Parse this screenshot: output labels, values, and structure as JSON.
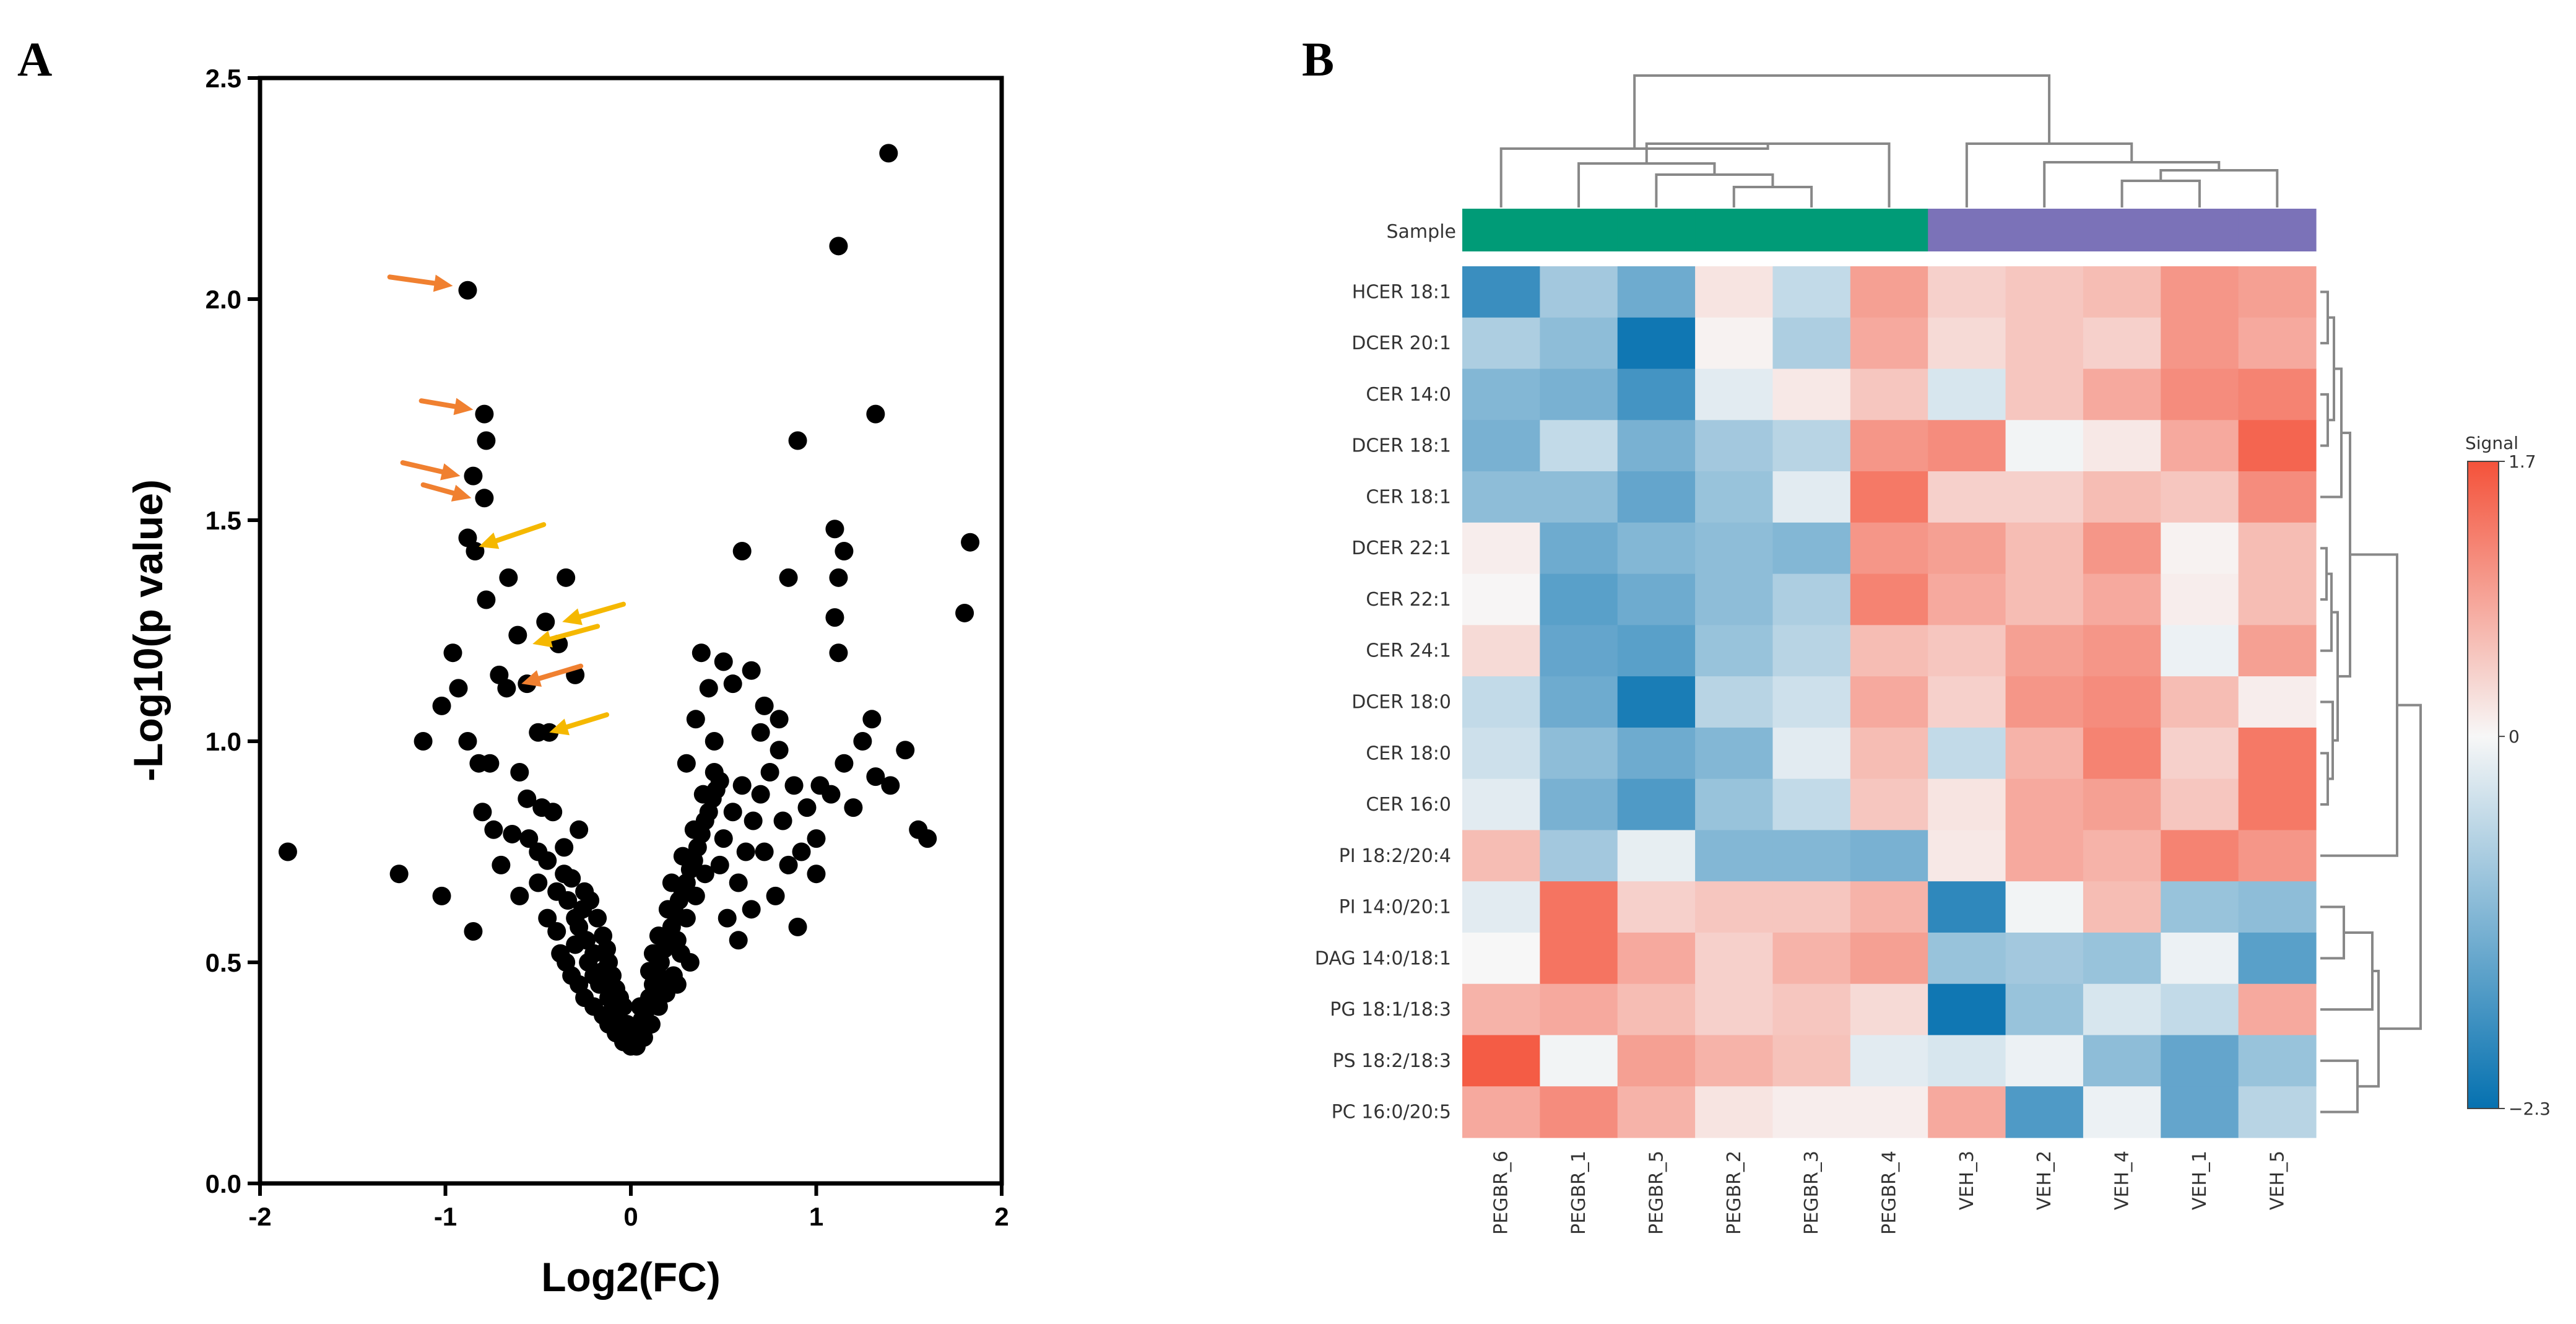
{
  "panels": {
    "a_label": "A",
    "b_label": "B"
  },
  "chart_data": [
    {
      "type": "scatter",
      "panel": "A",
      "title": "",
      "xlabel": "Log2(FC)",
      "ylabel": "-Log10(p value)",
      "xlim": [
        -2,
        2
      ],
      "ylim": [
        0,
        2.5
      ],
      "xticks": [
        "-2",
        "-1",
        "0",
        "1",
        "2"
      ],
      "xtick_values": [
        -2,
        -1,
        0,
        1,
        2
      ],
      "yticks": [
        "0.0",
        "0.5",
        "1.0",
        "1.5",
        "2.0",
        "2.5"
      ],
      "ytick_values": [
        0,
        0.5,
        1.0,
        1.5,
        2.0,
        2.5
      ],
      "point_color": "#000000",
      "points": [
        [
          -1.85,
          0.75
        ],
        [
          -1.25,
          0.7
        ],
        [
          -1.12,
          1.0
        ],
        [
          -1.02,
          1.08
        ],
        [
          -1.02,
          0.65
        ],
        [
          -0.88,
          2.02
        ],
        [
          -0.85,
          1.6
        ],
        [
          -0.85,
          0.57
        ],
        [
          -0.79,
          1.74
        ],
        [
          -0.78,
          1.68
        ],
        [
          -0.79,
          1.55
        ],
        [
          -0.88,
          1.46
        ],
        [
          -0.84,
          1.43
        ],
        [
          -0.96,
          1.2
        ],
        [
          -0.93,
          1.12
        ],
        [
          -0.78,
          1.32
        ],
        [
          -0.66,
          1.37
        ],
        [
          -0.61,
          1.24
        ],
        [
          -0.71,
          1.15
        ],
        [
          -0.67,
          1.12
        ],
        [
          -0.56,
          1.13
        ],
        [
          -0.5,
          1.02
        ],
        [
          -0.44,
          1.02
        ],
        [
          -0.46,
          1.27
        ],
        [
          -0.39,
          1.22
        ],
        [
          -0.35,
          1.37
        ],
        [
          -0.3,
          1.15
        ],
        [
          -0.88,
          1.0
        ],
        [
          -0.76,
          0.95
        ],
        [
          -0.6,
          0.93
        ],
        [
          -0.56,
          0.87
        ],
        [
          -0.48,
          0.85
        ],
        [
          -0.42,
          0.84
        ],
        [
          -0.8,
          0.84
        ],
        [
          -0.74,
          0.8
        ],
        [
          -0.64,
          0.79
        ],
        [
          -0.36,
          0.76
        ],
        [
          -0.28,
          0.8
        ],
        [
          -0.7,
          0.72
        ],
        [
          -0.5,
          0.75
        ],
        [
          -0.82,
          0.95
        ],
        [
          -0.32,
          0.69
        ],
        [
          -0.25,
          0.66
        ],
        [
          -0.22,
          0.64
        ],
        [
          -0.18,
          0.6
        ],
        [
          -0.15,
          0.56
        ],
        [
          -0.13,
          0.53
        ],
        [
          -0.12,
          0.5
        ],
        [
          -0.1,
          0.47
        ],
        [
          -0.08,
          0.44
        ],
        [
          -0.06,
          0.42
        ],
        [
          -0.04,
          0.4
        ],
        [
          -0.02,
          0.36
        ],
        [
          -0.01,
          0.33
        ],
        [
          0.0,
          0.31
        ],
        [
          -0.28,
          0.58
        ],
        [
          -0.24,
          0.55
        ],
        [
          -0.2,
          0.52
        ],
        [
          -0.26,
          0.62
        ],
        [
          -0.3,
          0.6
        ],
        [
          -0.34,
          0.64
        ],
        [
          -0.17,
          0.45
        ],
        [
          -0.15,
          0.48
        ],
        [
          -0.12,
          0.42
        ],
        [
          -0.09,
          0.38
        ],
        [
          -0.07,
          0.35
        ],
        [
          -0.05,
          0.34
        ],
        [
          -0.2,
          0.47
        ],
        [
          -0.3,
          0.54
        ],
        [
          -0.36,
          0.7
        ],
        [
          -0.45,
          0.73
        ],
        [
          -0.55,
          0.78
        ],
        [
          -0.4,
          0.66
        ],
        [
          -0.1,
          0.41
        ],
        [
          -0.23,
          0.5
        ],
        [
          0.02,
          0.33
        ],
        [
          0.04,
          0.35
        ],
        [
          0.06,
          0.37
        ],
        [
          0.08,
          0.39
        ],
        [
          0.1,
          0.42
        ],
        [
          0.12,
          0.45
        ],
        [
          0.14,
          0.48
        ],
        [
          0.16,
          0.5
        ],
        [
          0.18,
          0.53
        ],
        [
          0.2,
          0.56
        ],
        [
          0.22,
          0.58
        ],
        [
          0.24,
          0.61
        ],
        [
          0.26,
          0.64
        ],
        [
          0.28,
          0.66
        ],
        [
          0.3,
          0.68
        ],
        [
          0.32,
          0.71
        ],
        [
          0.34,
          0.73
        ],
        [
          0.36,
          0.76
        ],
        [
          0.38,
          0.79
        ],
        [
          0.4,
          0.82
        ],
        [
          0.42,
          0.84
        ],
        [
          0.44,
          0.87
        ],
        [
          0.46,
          0.89
        ],
        [
          0.48,
          0.91
        ],
        [
          0.1,
          0.48
        ],
        [
          0.15,
          0.56
        ],
        [
          0.2,
          0.62
        ],
        [
          0.25,
          0.55
        ],
        [
          0.3,
          0.6
        ],
        [
          0.35,
          0.65
        ],
        [
          0.05,
          0.4
        ],
        [
          0.12,
          0.52
        ],
        [
          0.22,
          0.68
        ],
        [
          0.28,
          0.74
        ],
        [
          0.34,
          0.8
        ],
        [
          0.39,
          0.88
        ],
        [
          0.45,
          0.93
        ],
        [
          0.18,
          0.46
        ],
        [
          0.27,
          0.52
        ],
        [
          0.4,
          0.7
        ],
        [
          0.5,
          0.78
        ],
        [
          0.55,
          0.84
        ],
        [
          0.6,
          0.9
        ],
        [
          0.48,
          0.72
        ],
        [
          0.52,
          0.6
        ],
        [
          0.58,
          0.68
        ],
        [
          0.62,
          0.75
        ],
        [
          0.66,
          0.82
        ],
        [
          0.7,
          0.88
        ],
        [
          0.75,
          0.93
        ],
        [
          0.8,
          0.98
        ],
        [
          0.72,
          0.75
        ],
        [
          0.82,
          0.82
        ],
        [
          0.88,
          0.9
        ],
        [
          0.95,
          0.85
        ],
        [
          1.02,
          0.9
        ],
        [
          1.08,
          0.88
        ],
        [
          0.92,
          0.75
        ],
        [
          0.85,
          0.72
        ],
        [
          1.0,
          0.78
        ],
        [
          1.15,
          0.95
        ],
        [
          1.25,
          1.0
        ],
        [
          1.3,
          1.05
        ],
        [
          1.32,
          0.92
        ],
        [
          1.4,
          0.9
        ],
        [
          1.48,
          0.98
        ],
        [
          1.55,
          0.8
        ],
        [
          1.6,
          0.78
        ],
        [
          0.9,
          0.58
        ],
        [
          0.3,
          0.95
        ],
        [
          0.45,
          1.0
        ],
        [
          0.35,
          1.05
        ],
        [
          0.38,
          1.2
        ],
        [
          0.42,
          1.12
        ],
        [
          0.5,
          1.18
        ],
        [
          0.55,
          1.13
        ],
        [
          0.65,
          1.16
        ],
        [
          0.7,
          1.02
        ],
        [
          0.72,
          1.08
        ],
        [
          0.8,
          1.05
        ],
        [
          0.6,
          1.43
        ],
        [
          0.85,
          1.37
        ],
        [
          0.9,
          1.68
        ],
        [
          1.1,
          1.48
        ],
        [
          1.15,
          1.43
        ],
        [
          1.12,
          1.37
        ],
        [
          1.1,
          1.28
        ],
        [
          1.12,
          1.2
        ],
        [
          1.32,
          1.74
        ],
        [
          1.12,
          2.12
        ],
        [
          1.39,
          2.33
        ],
        [
          1.83,
          1.45
        ],
        [
          1.8,
          1.29
        ],
        [
          1.0,
          0.7
        ],
        [
          1.2,
          0.85
        ],
        [
          0.58,
          0.55
        ],
        [
          0.65,
          0.62
        ],
        [
          0.78,
          0.65
        ],
        [
          0.25,
          0.45
        ],
        [
          0.32,
          0.5
        ],
        [
          -0.6,
          0.65
        ],
        [
          -0.5,
          0.68
        ],
        [
          -0.45,
          0.6
        ],
        [
          -0.4,
          0.57
        ],
        [
          -0.38,
          0.52
        ],
        [
          -0.35,
          0.5
        ],
        [
          -0.32,
          0.47
        ],
        [
          -0.28,
          0.45
        ],
        [
          -0.25,
          0.42
        ],
        [
          -0.2,
          0.4
        ],
        [
          -0.15,
          0.38
        ],
        [
          -0.12,
          0.36
        ],
        [
          -0.08,
          0.34
        ],
        [
          -0.04,
          0.32
        ],
        [
          0.03,
          0.31
        ],
        [
          0.07,
          0.33
        ],
        [
          0.11,
          0.36
        ],
        [
          0.15,
          0.4
        ],
        [
          0.19,
          0.43
        ],
        [
          0.23,
          0.47
        ]
      ],
      "arrows": [
        {
          "color": "#f08030",
          "from": [
            -1.3,
            2.05
          ],
          "to": [
            -0.96,
            2.03
          ]
        },
        {
          "color": "#f08030",
          "from": [
            -1.13,
            1.77
          ],
          "to": [
            -0.85,
            1.75
          ]
        },
        {
          "color": "#f08030",
          "from": [
            -1.23,
            1.63
          ],
          "to": [
            -0.92,
            1.6
          ]
        },
        {
          "color": "#f08030",
          "from": [
            -1.12,
            1.58
          ],
          "to": [
            -0.86,
            1.55
          ]
        },
        {
          "color": "#f08030",
          "from": [
            -0.27,
            1.17
          ],
          "to": [
            -0.59,
            1.13
          ]
        },
        {
          "color": "#f5b800",
          "from": [
            -0.47,
            1.49
          ],
          "to": [
            -0.82,
            1.44
          ]
        },
        {
          "color": "#f5b800",
          "from": [
            -0.04,
            1.31
          ],
          "to": [
            -0.37,
            1.27
          ]
        },
        {
          "color": "#f5b800",
          "from": [
            -0.18,
            1.26
          ],
          "to": [
            -0.53,
            1.22
          ]
        },
        {
          "color": "#f5b800",
          "from": [
            -0.13,
            1.06
          ],
          "to": [
            -0.44,
            1.02
          ]
        }
      ]
    },
    {
      "type": "heatmap",
      "panel": "B",
      "title": "",
      "sample_bar_label": "Sample",
      "legend_title": "Signal",
      "color_min": -2.3,
      "color_max": 1.7,
      "legend_ticks": [
        "1.7",
        "0",
        "−2.3"
      ],
      "legend_tick_values": [
        1.7,
        0,
        -2.3
      ],
      "colors": {
        "low": "#0571b0",
        "mid": "#f7f7f7",
        "high": "#f4523a",
        "group1": "#009b77",
        "group2": "#7b72b8"
      },
      "columns": [
        "PEGBR_6",
        "PEGBR_1",
        "PEGBR_5",
        "PEGBR_2",
        "PEGBR_3",
        "PEGBR_4",
        "VEH_3",
        "VEH_2",
        "VEH_4",
        "VEH_1",
        "VEH_5"
      ],
      "column_groups": [
        1,
        1,
        1,
        1,
        1,
        1,
        2,
        2,
        2,
        2,
        2
      ],
      "rows": [
        "HCER 18:1",
        "DCER 20:1",
        "CER 14:0",
        "DCER 18:1",
        "CER 18:1",
        "DCER 22:1",
        "CER 22:1",
        "CER 24:1",
        "DCER 18:0",
        "CER 18:0",
        "CER 16:0",
        "PI 18:2/20:4",
        "PI 14:0/20:1",
        "DAG 14:0/18:1",
        "PG 18:1/18:3",
        "PS 18:2/18:3",
        "PC 16:0/20:5"
      ],
      "values": [
        [
          -1.8,
          -0.8,
          -1.3,
          0.2,
          -0.5,
          0.9,
          0.4,
          0.5,
          0.6,
          1.0,
          0.9
        ],
        [
          -0.7,
          -1.0,
          -2.2,
          0.05,
          -0.7,
          0.8,
          0.3,
          0.5,
          0.4,
          1.0,
          0.8
        ],
        [
          -1.1,
          -1.2,
          -1.7,
          -0.2,
          0.15,
          0.5,
          -0.3,
          0.5,
          0.8,
          1.1,
          1.2
        ],
        [
          -1.2,
          -0.5,
          -1.2,
          -0.8,
          -0.6,
          1.0,
          1.1,
          -0.05,
          0.15,
          0.8,
          1.5
        ],
        [
          -1.0,
          -1.0,
          -1.4,
          -0.9,
          -0.2,
          1.3,
          0.4,
          0.4,
          0.6,
          0.5,
          1.1
        ],
        [
          0.1,
          -1.3,
          -1.1,
          -1.0,
          -1.1,
          1.0,
          0.9,
          0.6,
          1.0,
          0.05,
          0.6
        ],
        [
          0.02,
          -1.5,
          -1.3,
          -1.0,
          -0.7,
          1.2,
          0.8,
          0.6,
          0.8,
          0.1,
          0.6
        ],
        [
          0.3,
          -1.4,
          -1.5,
          -0.9,
          -0.6,
          0.6,
          0.5,
          0.9,
          1.0,
          -0.1,
          0.9
        ],
        [
          -0.5,
          -1.3,
          -2.1,
          -0.6,
          -0.4,
          0.8,
          0.4,
          1.0,
          1.1,
          0.6,
          0.1
        ],
        [
          -0.4,
          -1.0,
          -1.3,
          -1.1,
          -0.2,
          0.6,
          -0.5,
          0.7,
          1.2,
          0.4,
          1.3
        ],
        [
          -0.2,
          -1.2,
          -1.6,
          -0.9,
          -0.5,
          0.5,
          0.2,
          0.8,
          0.9,
          0.5,
          1.3
        ],
        [
          0.6,
          -0.8,
          -0.15,
          -1.1,
          -1.1,
          -1.2,
          0.15,
          0.8,
          0.7,
          1.2,
          1.0
        ],
        [
          -0.2,
          1.35,
          0.4,
          0.5,
          0.5,
          0.7,
          -1.9,
          -0.05,
          0.6,
          -0.9,
          -1.0
        ],
        [
          0.0,
          1.35,
          0.8,
          0.4,
          0.7,
          0.9,
          -0.9,
          -0.8,
          -0.9,
          -0.1,
          -1.5
        ],
        [
          0.7,
          0.8,
          0.6,
          0.4,
          0.5,
          0.3,
          -2.2,
          -0.9,
          -0.3,
          -0.5,
          0.8
        ],
        [
          1.6,
          -0.05,
          0.9,
          0.7,
          0.55,
          -0.2,
          -0.3,
          -0.1,
          -1.0,
          -1.4,
          -0.9
        ],
        [
          0.8,
          1.1,
          0.7,
          0.2,
          0.1,
          0.1,
          0.8,
          -1.6,
          -0.1,
          -1.4,
          -0.6
        ]
      ]
    }
  ]
}
